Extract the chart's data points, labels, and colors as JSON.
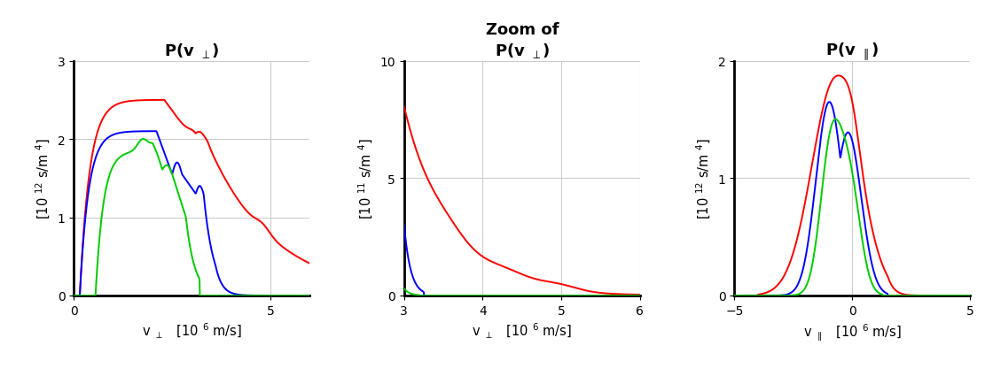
{
  "subplot1": {
    "title": "P(v $_{\\perp}$)",
    "xlabel": "v $_{\\perp}$   [10 $^{6}$ m/s]",
    "ylabel": "[10 $^{12}$ s/m $^{4}$]",
    "xlim": [
      0,
      6
    ],
    "ylim": [
      0,
      3
    ],
    "yticks": [
      0,
      1,
      2,
      3
    ],
    "xticks": [
      0,
      5
    ]
  },
  "subplot2": {
    "title": "Zoom of\nP(v $_{\\perp}$)",
    "xlabel": "v $_{\\perp}$   [10 $^{6}$ m/s]",
    "ylabel": "[10 $^{11}$ s/m $^{4}$]",
    "xlim": [
      3,
      6
    ],
    "ylim": [
      0,
      10
    ],
    "yticks": [
      0,
      5,
      10
    ],
    "xticks": [
      3,
      4,
      5,
      6
    ]
  },
  "subplot3": {
    "title": "P(v $_{\\parallel}$)",
    "xlabel": "v $_{\\parallel}$   [10 $^{6}$ m/s]",
    "ylabel": "[10 $^{12}$ s/m $^{4}$]",
    "xlim": [
      -5,
      5
    ],
    "ylim": [
      0,
      2
    ],
    "yticks": [
      0,
      1,
      2
    ],
    "xticks": [
      -5,
      0,
      5
    ]
  },
  "colors": {
    "red": "#ff0000",
    "blue": "#0000ff",
    "green": "#00cc00"
  },
  "linewidth": 1.4,
  "grid_color": "#cccccc"
}
